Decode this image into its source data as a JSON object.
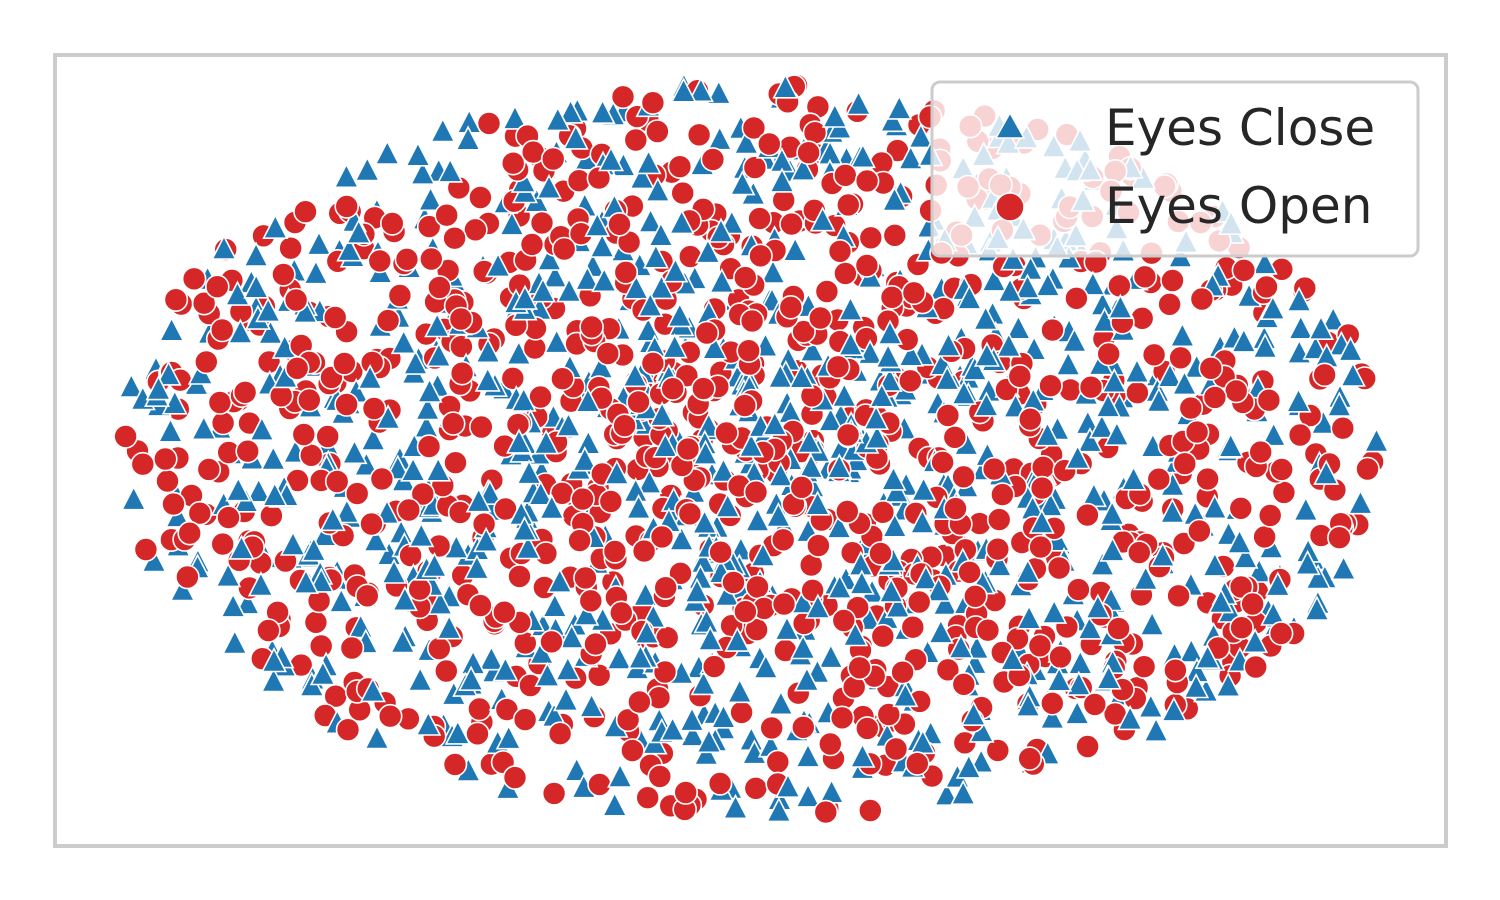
{
  "chart_data": {
    "type": "scatter",
    "title": "",
    "xlabel": "",
    "ylabel": "",
    "xlim": [
      -1.0,
      1.0
    ],
    "ylim": [
      -1.0,
      1.0
    ],
    "axes_ticks_visible": false,
    "grid": false,
    "legend_location": "top-right",
    "series": [
      {
        "name": "Eyes Close",
        "marker": "triangle",
        "color": "#1f77b4",
        "point_count": 1000,
        "seed": 11
      },
      {
        "name": "Eyes Open",
        "marker": "circle",
        "color": "#d62728",
        "point_count": 1000,
        "seed": 29
      }
    ]
  },
  "colors": {
    "frame": "#cccccc",
    "marker_edge": "#ffffff"
  }
}
